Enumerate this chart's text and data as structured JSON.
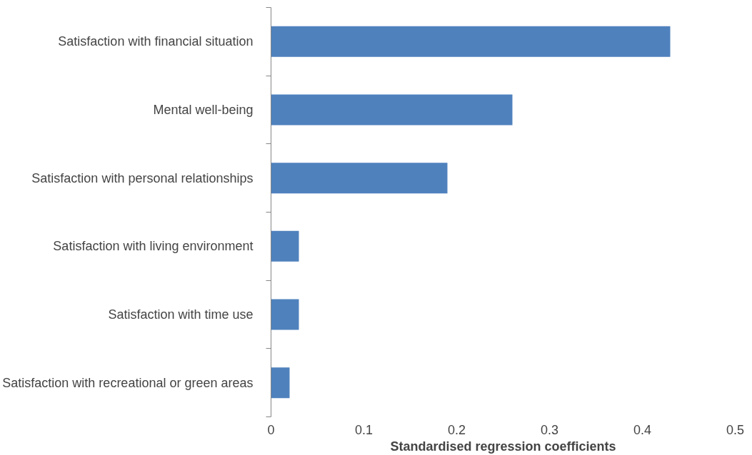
{
  "chart_data": {
    "type": "bar",
    "orientation": "horizontal",
    "xlabel": "Standardised regression coefficients",
    "categories": [
      "Satisfaction with financial situation",
      "Mental well-being",
      "Satisfaction with personal relationships",
      "Satisfaction with living environment",
      "Satisfaction with time use",
      "Satisfaction with recreational or green areas"
    ],
    "values": [
      0.43,
      0.26,
      0.19,
      0.03,
      0.03,
      0.02
    ],
    "color": "#4f81bd",
    "xlim": [
      0,
      0.5
    ],
    "xticks": [
      0,
      0.1,
      0.2,
      0.3,
      0.4,
      0.5
    ],
    "grid": false
  }
}
